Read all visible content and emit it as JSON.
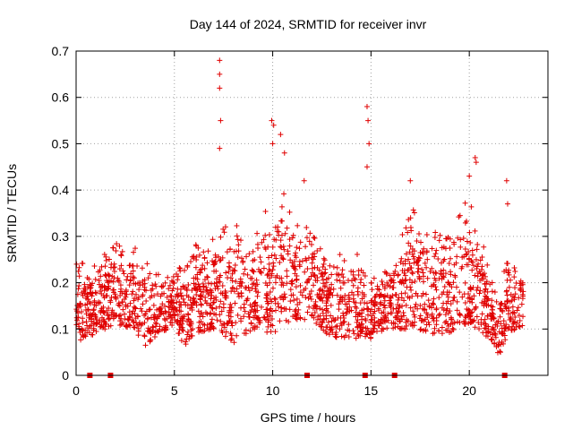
{
  "chart_data": {
    "type": "scatter",
    "title": "Day 144 of 2024, SRMTID for receiver invr",
    "xlabel": "GPS time / hours",
    "ylabel": "SRMTID / TECUs",
    "xlim": [
      0,
      24
    ],
    "ylim": [
      0,
      0.7
    ],
    "xticks": [
      "0",
      "5",
      "10",
      "15",
      "20"
    ],
    "yticks": [
      "0",
      "0.1",
      "0.2",
      "0.3",
      "0.4",
      "0.5",
      "0.6",
      "0.7"
    ],
    "grid": true,
    "marker": "plus",
    "color": "#e00000",
    "approx_point_count": 2100,
    "envelope": [
      {
        "x": 0.0,
        "low": 0.07,
        "high": 0.27
      },
      {
        "x": 1.0,
        "low": 0.09,
        "high": 0.25
      },
      {
        "x": 2.0,
        "low": 0.11,
        "high": 0.3
      },
      {
        "x": 3.0,
        "low": 0.1,
        "high": 0.3
      },
      {
        "x": 3.5,
        "low": 0.06,
        "high": 0.25
      },
      {
        "x": 4.0,
        "low": 0.08,
        "high": 0.23
      },
      {
        "x": 5.0,
        "low": 0.11,
        "high": 0.24
      },
      {
        "x": 5.5,
        "low": 0.06,
        "high": 0.26
      },
      {
        "x": 6.0,
        "low": 0.09,
        "high": 0.3
      },
      {
        "x": 7.0,
        "low": 0.1,
        "high": 0.33
      },
      {
        "x": 8.0,
        "low": 0.07,
        "high": 0.37
      },
      {
        "x": 9.0,
        "low": 0.1,
        "high": 0.31
      },
      {
        "x": 10.0,
        "low": 0.09,
        "high": 0.4
      },
      {
        "x": 11.0,
        "low": 0.12,
        "high": 0.39
      },
      {
        "x": 12.0,
        "low": 0.12,
        "high": 0.36
      },
      {
        "x": 13.0,
        "low": 0.08,
        "high": 0.28
      },
      {
        "x": 14.0,
        "low": 0.08,
        "high": 0.3
      },
      {
        "x": 15.0,
        "low": 0.08,
        "high": 0.22
      },
      {
        "x": 16.0,
        "low": 0.1,
        "high": 0.27
      },
      {
        "x": 17.0,
        "low": 0.1,
        "high": 0.38
      },
      {
        "x": 18.0,
        "low": 0.09,
        "high": 0.33
      },
      {
        "x": 19.0,
        "low": 0.09,
        "high": 0.33
      },
      {
        "x": 20.0,
        "low": 0.11,
        "high": 0.4
      },
      {
        "x": 21.0,
        "low": 0.08,
        "high": 0.24
      },
      {
        "x": 21.5,
        "low": 0.04,
        "high": 0.2
      },
      {
        "x": 22.0,
        "low": 0.09,
        "high": 0.26
      },
      {
        "x": 22.8,
        "low": 0.11,
        "high": 0.24
      }
    ],
    "spikes": [
      {
        "x": 7.3,
        "y": 0.68
      },
      {
        "x": 7.3,
        "y": 0.65
      },
      {
        "x": 7.3,
        "y": 0.62
      },
      {
        "x": 7.35,
        "y": 0.55
      },
      {
        "x": 7.3,
        "y": 0.49
      },
      {
        "x": 9.95,
        "y": 0.55
      },
      {
        "x": 10.05,
        "y": 0.54
      },
      {
        "x": 10.0,
        "y": 0.5
      },
      {
        "x": 10.4,
        "y": 0.52
      },
      {
        "x": 10.6,
        "y": 0.48
      },
      {
        "x": 11.6,
        "y": 0.42
      },
      {
        "x": 14.8,
        "y": 0.58
      },
      {
        "x": 14.85,
        "y": 0.55
      },
      {
        "x": 14.9,
        "y": 0.5
      },
      {
        "x": 14.8,
        "y": 0.45
      },
      {
        "x": 17.0,
        "y": 0.42
      },
      {
        "x": 20.0,
        "y": 0.43
      },
      {
        "x": 20.3,
        "y": 0.47
      },
      {
        "x": 20.35,
        "y": 0.46
      },
      {
        "x": 21.9,
        "y": 0.42
      },
      {
        "x": 21.95,
        "y": 0.37
      }
    ],
    "baseline_markers": [
      {
        "x": 0.7,
        "y": 0
      },
      {
        "x": 1.75,
        "y": 0
      },
      {
        "x": 11.75,
        "y": 0
      },
      {
        "x": 14.7,
        "y": 0
      },
      {
        "x": 16.2,
        "y": 0
      },
      {
        "x": 21.8,
        "y": 0
      }
    ]
  }
}
